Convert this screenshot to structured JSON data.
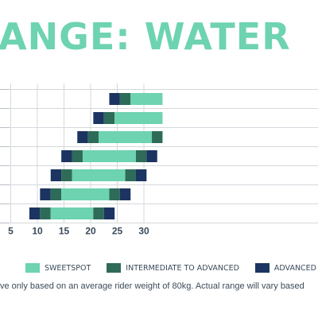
{
  "title": "ANGE: WATER",
  "footnote": "ve only based on an average rider weight of 80kg. Actual range will vary based",
  "colors": {
    "accent": "#6dd3b0",
    "sweetspot": "#6dd3b0",
    "intermediate": "#2e6b58",
    "advanced": "#1c3461"
  },
  "chart_data": {
    "type": "bar",
    "orientation": "horizontal",
    "stacked": true,
    "xlim": [
      3,
      33.5
    ],
    "xticks": [
      5,
      10,
      15,
      20,
      25,
      30
    ],
    "grid": true,
    "legend_position": "bottom",
    "legend": [
      {
        "label": "SWEETSPOT",
        "color": "#6dd3b0"
      },
      {
        "label": "INTERMEDIATE TO ADVANCED",
        "color": "#2e6b58"
      },
      {
        "label": "ADVANCED",
        "color": "#1c3461"
      }
    ],
    "rows": [
      [
        {
          "from": 23.5,
          "to": 25.5,
          "series": "advanced"
        },
        {
          "from": 25.5,
          "to": 27.5,
          "series": "intermediate"
        },
        {
          "from": 27.5,
          "to": 33.5,
          "series": "sweetspot"
        }
      ],
      [
        {
          "from": 20.5,
          "to": 22.5,
          "series": "advanced"
        },
        {
          "from": 22.5,
          "to": 24.5,
          "series": "intermediate"
        },
        {
          "from": 24.5,
          "to": 33.5,
          "series": "sweetspot"
        }
      ],
      [
        {
          "from": 17.5,
          "to": 19.5,
          "series": "advanced"
        },
        {
          "from": 19.5,
          "to": 21.5,
          "series": "intermediate"
        },
        {
          "from": 21.5,
          "to": 31.5,
          "series": "sweetspot"
        },
        {
          "from": 31.5,
          "to": 33.5,
          "series": "intermediate"
        }
      ],
      [
        {
          "from": 14.5,
          "to": 16.5,
          "series": "advanced"
        },
        {
          "from": 16.5,
          "to": 18.5,
          "series": "intermediate"
        },
        {
          "from": 18.5,
          "to": 28.5,
          "series": "sweetspot"
        },
        {
          "from": 28.5,
          "to": 30.5,
          "series": "intermediate"
        },
        {
          "from": 30.5,
          "to": 32.5,
          "series": "advanced"
        }
      ],
      [
        {
          "from": 12.5,
          "to": 14.5,
          "series": "advanced"
        },
        {
          "from": 14.5,
          "to": 16.5,
          "series": "intermediate"
        },
        {
          "from": 16.5,
          "to": 26.5,
          "series": "sweetspot"
        },
        {
          "from": 26.5,
          "to": 28.5,
          "series": "intermediate"
        },
        {
          "from": 28.5,
          "to": 30.5,
          "series": "advanced"
        }
      ],
      [
        {
          "from": 10.5,
          "to": 12.5,
          "series": "advanced"
        },
        {
          "from": 12.5,
          "to": 14.5,
          "series": "intermediate"
        },
        {
          "from": 14.5,
          "to": 23.5,
          "series": "sweetspot"
        },
        {
          "from": 23.5,
          "to": 25.5,
          "series": "intermediate"
        },
        {
          "from": 25.5,
          "to": 27.5,
          "series": "advanced"
        }
      ],
      [
        {
          "from": 8.5,
          "to": 10.5,
          "series": "advanced"
        },
        {
          "from": 10.5,
          "to": 12.5,
          "series": "intermediate"
        },
        {
          "from": 12.5,
          "to": 20.5,
          "series": "sweetspot"
        },
        {
          "from": 20.5,
          "to": 22.5,
          "series": "intermediate"
        },
        {
          "from": 22.5,
          "to": 24.5,
          "series": "advanced"
        }
      ]
    ]
  }
}
